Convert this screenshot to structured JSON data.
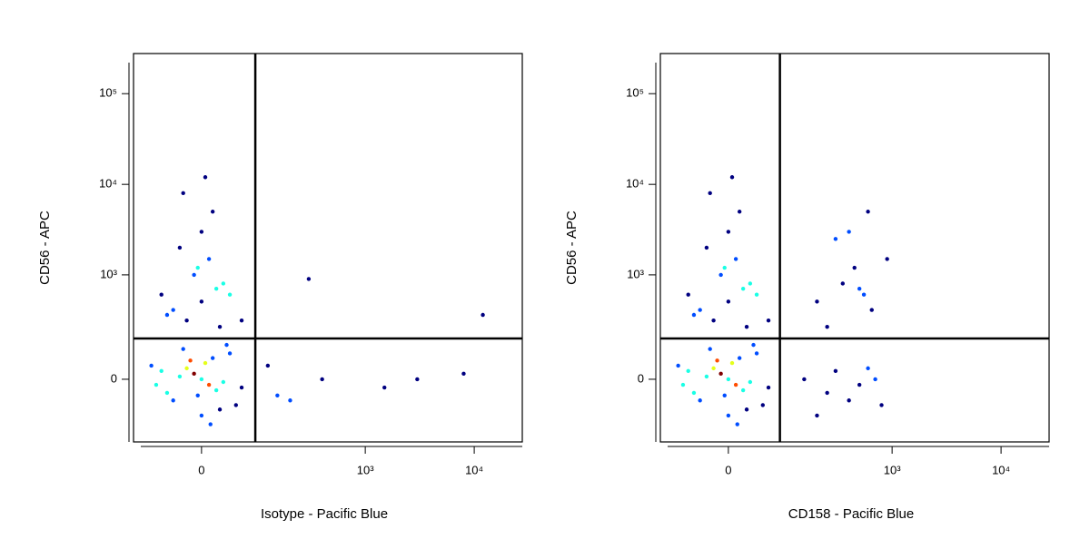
{
  "chart_data": [
    {
      "type": "scatter",
      "x_label": "Isotype - Pacific Blue",
      "y_label": "CD56 - APC",
      "xlim": [
        -125,
        27600
      ],
      "ylim": [
        -334,
        277000
      ],
      "xticks": [
        0,
        {
          "value": 1000,
          "label": "10³"
        },
        {
          "value": 10000,
          "label": "10⁴"
        }
      ],
      "yticks": [
        0,
        {
          "value": 1000,
          "label": "10³"
        },
        {
          "value": 10000,
          "label": "10⁴"
        },
        {
          "value": 100000,
          "label": "10⁵"
        }
      ],
      "gate": {
        "x": 88,
        "y": 175
      },
      "x": [
        0,
        -10,
        10,
        -20,
        20,
        -30,
        30,
        5,
        -5,
        15,
        -40,
        40,
        -60,
        50,
        -80,
        60,
        0,
        -25,
        25,
        -50,
        35,
        -15,
        12,
        -70,
        -20,
        0,
        20,
        -40,
        40,
        -10,
        10,
        -30,
        30,
        -50,
        0,
        15,
        -25,
        25,
        -5,
        5,
        -60,
        60,
        120,
        200,
        400,
        1500,
        3000,
        8000,
        12000,
        300,
        150
      ],
      "y": [
        0,
        20,
        -20,
        40,
        -40,
        10,
        -10,
        60,
        -60,
        80,
        -80,
        100,
        30,
        -100,
        50,
        -30,
        -150,
        120,
        -120,
        -50,
        140,
        70,
        -200,
        -20,
        300,
        500,
        700,
        400,
        600,
        1000,
        1500,
        2000,
        800,
        350,
        3000,
        5000,
        8000,
        250,
        1200,
        12000,
        600,
        300,
        50,
        -80,
        0,
        -30,
        0,
        20,
        350,
        900,
        -60
      ]
    },
    {
      "type": "scatter",
      "x_label": "CD158 - Pacific Blue",
      "y_label": "CD56 - APC",
      "xlim": [
        -125,
        27600
      ],
      "ylim": [
        -334,
        277000
      ],
      "xticks": [
        0,
        {
          "value": 1000,
          "label": "10³"
        },
        {
          "value": 10000,
          "label": "10⁴"
        }
      ],
      "yticks": [
        0,
        {
          "value": 1000,
          "label": "10³"
        },
        {
          "value": 10000,
          "label": "10⁴"
        },
        {
          "value": 100000,
          "label": "10⁵"
        }
      ],
      "gate": {
        "x": 83,
        "y": 175
      },
      "x": [
        0,
        -10,
        10,
        -20,
        20,
        -30,
        30,
        5,
        -5,
        15,
        -40,
        40,
        -60,
        50,
        -80,
        60,
        0,
        -25,
        25,
        -50,
        35,
        -15,
        12,
        -70,
        -20,
        0,
        20,
        -40,
        40,
        -10,
        10,
        -30,
        30,
        -50,
        0,
        15,
        -25,
        25,
        -5,
        5,
        -60,
        60,
        150,
        250,
        300,
        400,
        500,
        600,
        700,
        800,
        200,
        350,
        450,
        550,
        650,
        300,
        400,
        500,
        250,
        900,
        600,
        200
      ],
      "y": [
        0,
        20,
        -20,
        40,
        -40,
        10,
        -10,
        60,
        -60,
        80,
        -80,
        100,
        30,
        -100,
        50,
        -30,
        -150,
        120,
        -120,
        -50,
        140,
        70,
        -200,
        -20,
        300,
        500,
        700,
        400,
        600,
        1000,
        1500,
        2000,
        800,
        350,
        3000,
        5000,
        8000,
        250,
        1200,
        12000,
        600,
        300,
        0,
        -50,
        30,
        -80,
        -20,
        40,
        0,
        -100,
        500,
        800,
        1200,
        600,
        400,
        2500,
        3000,
        700,
        250,
        1500,
        5000,
        -150
      ]
    }
  ]
}
